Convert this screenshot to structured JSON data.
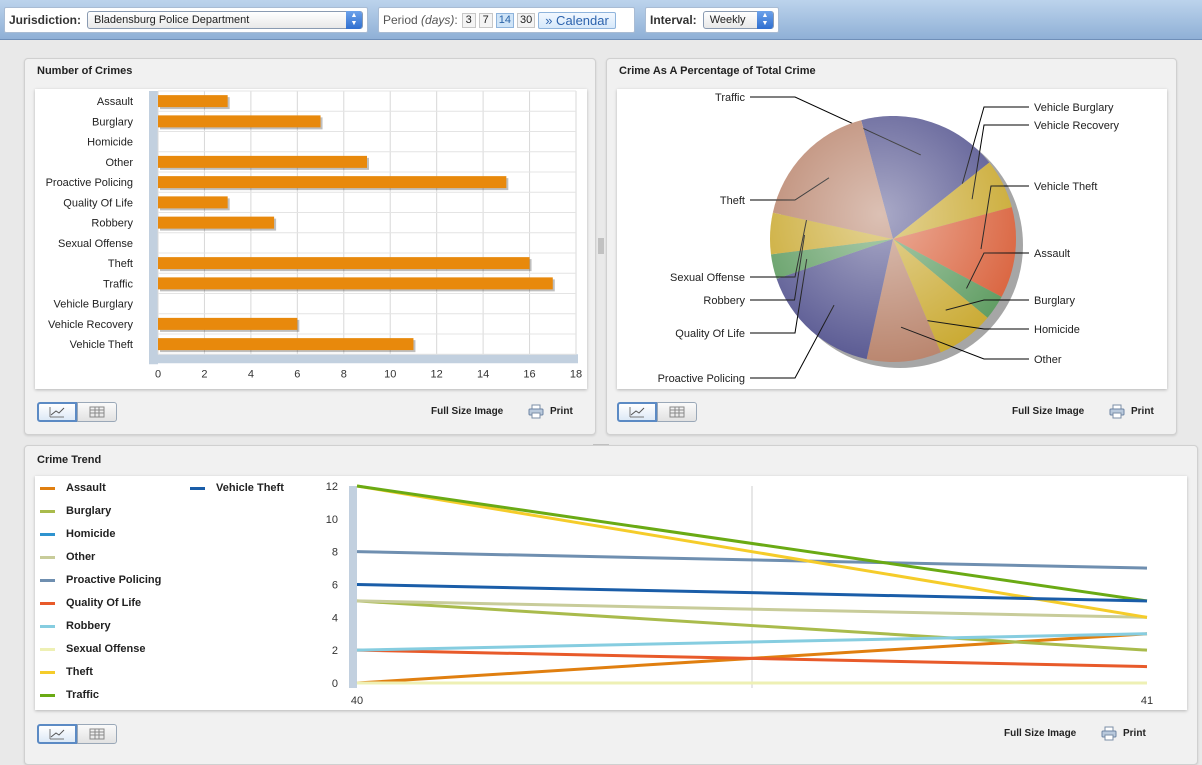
{
  "toolbar": {
    "jurisdiction_label": "Jurisdiction:",
    "jurisdiction_value": "Bladensburg Police Department",
    "period_label": "Period",
    "period_unit": "(days)",
    "period_options": [
      "3",
      "7",
      "14",
      "30"
    ],
    "period_selected": "14",
    "calendar_label": "» Calendar",
    "interval_label": "Interval:",
    "interval_value": "Weekly"
  },
  "bar_panel": {
    "title": "Number of Crimes",
    "full_size_label": "Full Size Image",
    "print_label": "Print"
  },
  "pie_panel": {
    "title": "Crime As A Percentage of Total Crime",
    "full_size_label": "Full Size Image",
    "print_label": "Print"
  },
  "trend_panel": {
    "title": "Crime Trend",
    "full_size_label": "Full Size Image",
    "print_label": "Print"
  },
  "colors": {
    "bar": "#e8890c",
    "toolbar_top": "#bcd3ec",
    "toolbar_bottom": "#8fb0d6"
  },
  "icons": [
    "chart-view-icon",
    "table-view-icon",
    "printer-icon",
    "select-arrows-icon",
    "splitter-grip-icon"
  ],
  "chart_data": [
    {
      "type": "bar",
      "orientation": "horizontal",
      "title": "Number of Crimes",
      "categories": [
        "Assault",
        "Burglary",
        "Homicide",
        "Other",
        "Proactive Policing",
        "Quality Of Life",
        "Robbery",
        "Sexual Offense",
        "Theft",
        "Traffic",
        "Vehicle Burglary",
        "Vehicle Recovery",
        "Vehicle Theft"
      ],
      "values": [
        3,
        7,
        0,
        9,
        15,
        3,
        5,
        0,
        16,
        17,
        0,
        6,
        11
      ],
      "xlim": [
        0,
        18
      ],
      "xticks": [
        "0",
        "2",
        "4",
        "6",
        "8",
        "10",
        "12",
        "14",
        "16",
        "18"
      ],
      "grid": true
    },
    {
      "type": "pie",
      "title": "Crime As A Percentage of Total Crime",
      "slices": [
        {
          "label": "Traffic",
          "value": 17,
          "color": "#54548f"
        },
        {
          "label": "Vehicle Burglary",
          "value": 0,
          "color": "#d0c04a"
        },
        {
          "label": "Vehicle Recovery",
          "value": 6,
          "color": "#c9a82e"
        },
        {
          "label": "Vehicle Theft",
          "value": 11,
          "color": "#d9603a"
        },
        {
          "label": "Assault",
          "value": 3,
          "color": "#5b9a5e"
        },
        {
          "label": "Burglary",
          "value": 7,
          "color": "#c9a82e"
        },
        {
          "label": "Homicide",
          "value": 0,
          "color": "#d0c04a"
        },
        {
          "label": "Other",
          "value": 9,
          "color": "#b8826a"
        },
        {
          "label": "Proactive Policing",
          "value": 15,
          "color": "#54548f"
        },
        {
          "label": "Quality Of Life",
          "value": 3,
          "color": "#5b9a5e"
        },
        {
          "label": "Robbery",
          "value": 5,
          "color": "#c9a82e"
        },
        {
          "label": "Sexual Offense",
          "value": 0,
          "color": "#d0c04a"
        },
        {
          "label": "Theft",
          "value": 16,
          "color": "#b8826a"
        }
      ]
    },
    {
      "type": "line",
      "title": "Crime Trend",
      "x": [
        "40",
        "41"
      ],
      "ylim": [
        0,
        12
      ],
      "yticks": [
        "0",
        "2",
        "4",
        "6",
        "8",
        "10",
        "12"
      ],
      "series": [
        {
          "name": "Assault",
          "color": "#e07f10",
          "values": [
            0,
            3
          ]
        },
        {
          "name": "Burglary",
          "color": "#a9bb4c",
          "values": [
            5,
            2
          ]
        },
        {
          "name": "Homicide",
          "color": "#2e93cf",
          "values": [
            0,
            0
          ]
        },
        {
          "name": "Other",
          "color": "#c8cc9a",
          "values": [
            5,
            4
          ]
        },
        {
          "name": "Proactive Policing",
          "color": "#6f8fb0",
          "values": [
            8,
            7
          ]
        },
        {
          "name": "Quality Of Life",
          "color": "#e85a2a",
          "values": [
            2,
            1
          ]
        },
        {
          "name": "Robbery",
          "color": "#86cde0",
          "values": [
            2,
            3
          ]
        },
        {
          "name": "Sexual Offense",
          "color": "#eef0b4",
          "values": [
            0,
            0
          ]
        },
        {
          "name": "Theft",
          "color": "#f5cc2a",
          "values": [
            12,
            4
          ]
        },
        {
          "name": "Traffic",
          "color": "#6aaa14",
          "values": [
            12,
            5
          ]
        },
        {
          "name": "Vehicle Theft",
          "color": "#1a5da8",
          "values": [
            6,
            5
          ]
        }
      ]
    }
  ]
}
